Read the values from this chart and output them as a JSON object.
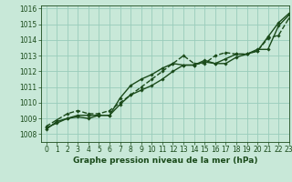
{
  "title": "Graphe pression niveau de la mer (hPa)",
  "bg_color": "#c8e8d8",
  "grid_color": "#99ccbb",
  "line_color": "#1a4a1a",
  "marker_color": "#1a4a1a",
  "xlim": [
    -0.5,
    23
  ],
  "ylim": [
    1007.5,
    1016.2
  ],
  "xticks": [
    0,
    1,
    2,
    3,
    4,
    5,
    6,
    7,
    8,
    9,
    10,
    11,
    12,
    13,
    14,
    15,
    16,
    17,
    18,
    19,
    20,
    21,
    22,
    23
  ],
  "yticks": [
    1008,
    1009,
    1010,
    1011,
    1012,
    1013,
    1014,
    1015,
    1016
  ],
  "series": [
    [
      1008.3,
      1008.8,
      1009.0,
      1009.1,
      1009.0,
      1009.2,
      1009.2,
      1009.9,
      1010.5,
      1010.8,
      1011.1,
      1011.5,
      1012.0,
      1012.4,
      1012.4,
      1012.6,
      1012.5,
      1012.5,
      1012.9,
      1013.1,
      1013.4,
      1013.4,
      1014.9,
      1015.6
    ],
    [
      1008.4,
      1008.7,
      1009.0,
      1009.2,
      1009.2,
      1009.2,
      1009.2,
      1010.3,
      1011.1,
      1011.5,
      1011.8,
      1012.2,
      1012.5,
      1012.4,
      1012.4,
      1012.7,
      1012.5,
      1012.8,
      1013.1,
      1013.1,
      1013.3,
      1014.2,
      1015.1,
      1015.7
    ],
    [
      1008.5,
      1008.9,
      1009.3,
      1009.5,
      1009.3,
      1009.3,
      1009.5,
      1010.0,
      1010.5,
      1011.0,
      1011.5,
      1012.0,
      1012.5,
      1013.0,
      1012.5,
      1012.5,
      1013.0,
      1013.2,
      1013.1,
      1013.1,
      1013.3,
      1014.1,
      1014.3,
      1015.4
    ]
  ],
  "linestyles": [
    "-",
    "-",
    "--"
  ],
  "linewidths": [
    1.0,
    1.0,
    1.0
  ],
  "title_fontsize": 6.5,
  "tick_fontsize": 5.5
}
